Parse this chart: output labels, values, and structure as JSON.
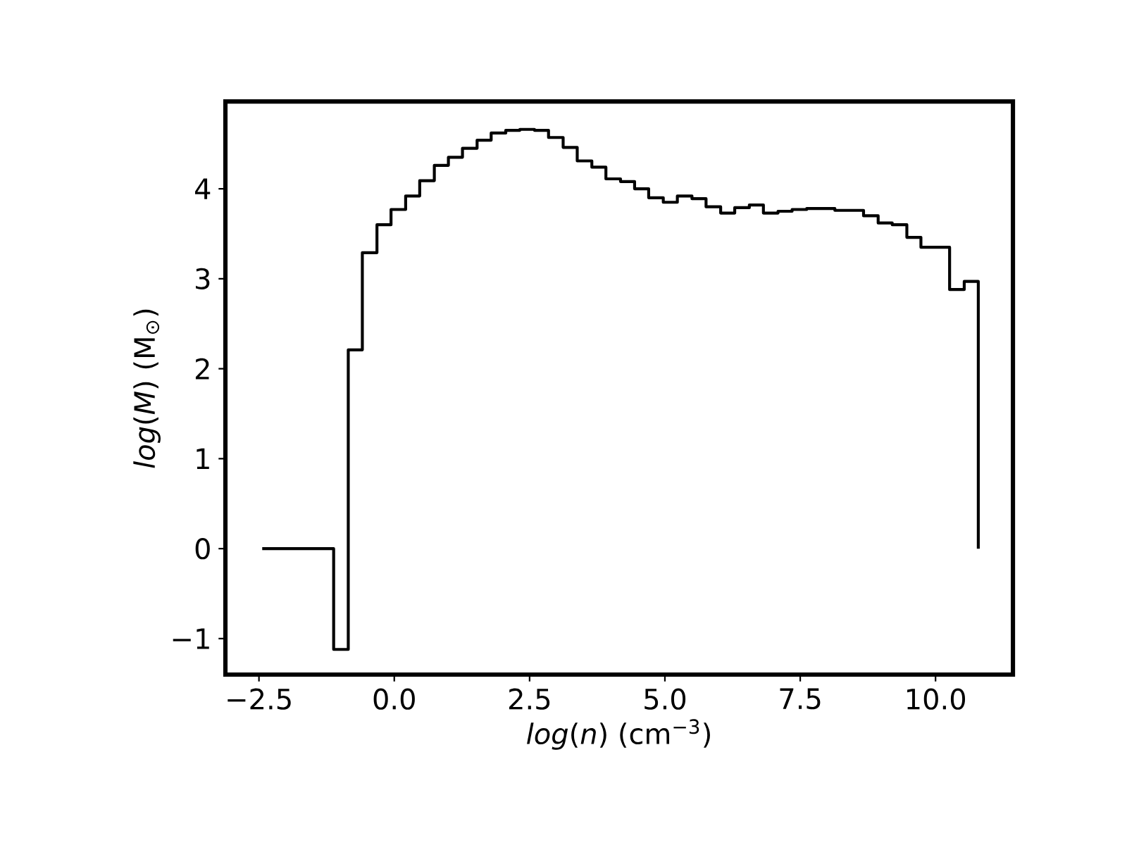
{
  "chart_data": {
    "type": "histogram",
    "xlabel": "*log*(*n*) (cm$^{−3}$)",
    "ylabel": "*log*(*M*) (M$_{⊙}$)",
    "color": "#000000",
    "bins": [
      -2.44,
      -2.18,
      -1.91,
      -1.65,
      -1.38,
      -1.12,
      -0.85,
      -0.59,
      -0.32,
      -0.06,
      0.21,
      0.47,
      0.74,
      1.0,
      1.26,
      1.53,
      1.79,
      2.06,
      2.32,
      2.59,
      2.85,
      3.12,
      3.38,
      3.65,
      3.91,
      4.18,
      4.44,
      4.7,
      4.97,
      5.23,
      5.5,
      5.76,
      6.03,
      6.29,
      6.56,
      6.82,
      7.09,
      7.35,
      7.62,
      7.88,
      8.14,
      8.41,
      8.67,
      8.94,
      9.2,
      9.47,
      9.73,
      10.0,
      10.26,
      10.53,
      10.79
    ],
    "values": [
      0,
      0,
      0,
      0,
      0,
      -1.12,
      2.21,
      3.29,
      3.6,
      3.77,
      3.92,
      4.09,
      4.26,
      4.35,
      4.45,
      4.54,
      4.62,
      4.65,
      4.66,
      4.65,
      4.57,
      4.46,
      4.31,
      4.24,
      4.11,
      4.08,
      4.0,
      3.9,
      3.85,
      3.92,
      3.89,
      3.8,
      3.73,
      3.79,
      3.82,
      3.73,
      3.75,
      3.77,
      3.78,
      3.78,
      3.76,
      3.76,
      3.7,
      3.62,
      3.6,
      3.46,
      3.35,
      3.35,
      2.88,
      2.97
    ],
    "xlim": [
      -3.12,
      11.43
    ],
    "ylim": [
      -1.4,
      4.97
    ],
    "xticks": [
      {
        "value": -2.5,
        "label": "−2.5"
      },
      {
        "value": 0,
        "label": "0.0"
      },
      {
        "value": 2.5,
        "label": "2.5"
      },
      {
        "value": 5,
        "label": "5.0"
      },
      {
        "value": 7.5,
        "label": "7.5"
      },
      {
        "value": 10,
        "label": "10.0"
      }
    ],
    "yticks": [
      {
        "value": -1,
        "label": "−1"
      },
      0,
      1,
      2,
      3,
      4
    ]
  }
}
